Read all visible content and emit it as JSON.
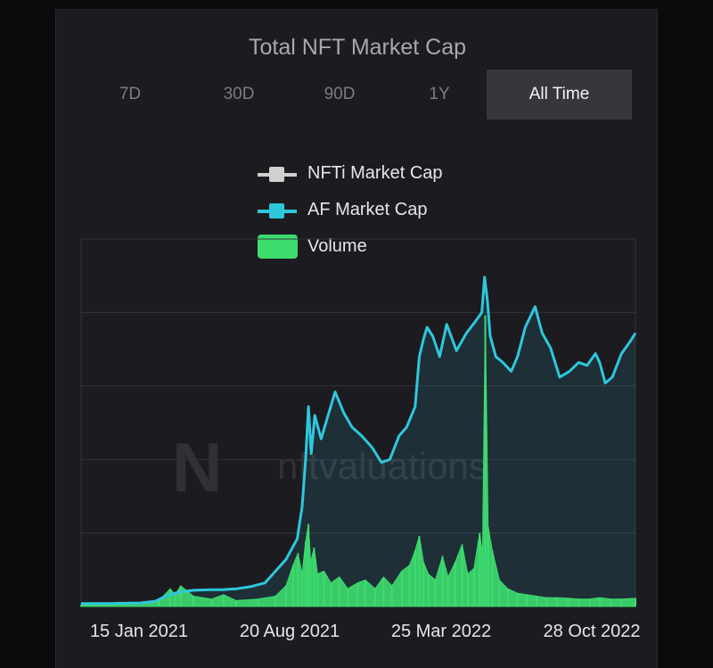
{
  "window": {
    "title": "Total NFT Market Cap"
  },
  "tabs": [
    {
      "label": "7D",
      "active": false
    },
    {
      "label": "30D",
      "active": false
    },
    {
      "label": "90D",
      "active": false
    },
    {
      "label": "1Y",
      "active": false
    },
    {
      "label": "All Time",
      "active": true
    }
  ],
  "legend": {
    "items": [
      {
        "label": "NFTi Market Cap",
        "color": "#d0d0d0",
        "icon": "line-swatch"
      },
      {
        "label": "AF Market Cap",
        "color": "#2fc7dc",
        "icon": "line-swatch"
      },
      {
        "label": "Volume",
        "color": "#3ddc6f",
        "icon": "box-swatch"
      }
    ]
  },
  "watermark": {
    "logo": "N",
    "text": "nftvaluations"
  },
  "colors": {
    "background": "#0b0b0d",
    "panel": "#1c1b20",
    "grid": "#34333a",
    "af_line": "#2fc7dc",
    "af_fill": "#2fc7dc",
    "volume": "#3ddc6f",
    "active_tab": "#37363d"
  },
  "chart_data": {
    "type": "line",
    "title": "Total NFT Market Cap",
    "xlabel": "",
    "ylabel": "",
    "y_tick_labels": false,
    "grid": true,
    "legend_position": "top-center",
    "x_ticks": [
      "15 Jan 2021",
      "20 Aug 2021",
      "25 Mar 2022",
      "28 Oct 2022"
    ],
    "x_range": [
      "2020-10-01",
      "2022-11-30"
    ],
    "series": [
      {
        "name": "AF Market Cap",
        "type": "area-line",
        "color": "#2fc7dc",
        "points": [
          [
            "2020-10-01",
            1.0
          ],
          [
            "2020-11-15",
            1.0
          ],
          [
            "2020-12-25",
            1.2
          ],
          [
            "2021-01-15",
            1.8
          ],
          [
            "2021-02-01",
            3.8
          ],
          [
            "2021-02-20",
            5.0
          ],
          [
            "2021-03-10",
            5.5
          ],
          [
            "2021-04-01",
            5.7
          ],
          [
            "2021-04-20",
            5.7
          ],
          [
            "2021-05-10",
            6.0
          ],
          [
            "2021-06-01",
            6.8
          ],
          [
            "2021-06-20",
            8.0
          ],
          [
            "2021-07-05",
            12.0
          ],
          [
            "2021-07-20",
            16.0
          ],
          [
            "2021-07-28",
            19.5
          ],
          [
            "2021-08-05",
            23.0
          ],
          [
            "2021-08-12",
            34.0
          ],
          [
            "2021-08-17",
            50.0
          ],
          [
            "2021-08-21",
            68.0
          ],
          [
            "2021-08-25",
            52.0
          ],
          [
            "2021-08-30",
            65.0
          ],
          [
            "2021-09-08",
            57.0
          ],
          [
            "2021-09-18",
            65.0
          ],
          [
            "2021-09-28",
            73.0
          ],
          [
            "2021-10-10",
            66.0
          ],
          [
            "2021-10-22",
            61.0
          ],
          [
            "2021-11-05",
            58.0
          ],
          [
            "2021-11-20",
            54.0
          ],
          [
            "2021-12-03",
            49.0
          ],
          [
            "2021-12-15",
            50.0
          ],
          [
            "2021-12-28",
            58.0
          ],
          [
            "2022-01-08",
            61.0
          ],
          [
            "2022-01-20",
            68.0
          ],
          [
            "2022-01-26",
            85.0
          ],
          [
            "2022-02-01",
            91.0
          ],
          [
            "2022-02-06",
            95.0
          ],
          [
            "2022-02-14",
            92.0
          ],
          [
            "2022-02-24",
            85.0
          ],
          [
            "2022-03-06",
            96.0
          ],
          [
            "2022-03-20",
            87.0
          ],
          [
            "2022-04-03",
            93.0
          ],
          [
            "2022-04-16",
            97.0
          ],
          [
            "2022-04-25",
            100.0
          ],
          [
            "2022-04-29",
            112.0
          ],
          [
            "2022-05-03",
            104.0
          ],
          [
            "2022-05-07",
            92.0
          ],
          [
            "2022-05-15",
            85.0
          ],
          [
            "2022-05-25",
            83.0
          ],
          [
            "2022-06-06",
            80.0
          ],
          [
            "2022-06-15",
            85.0
          ],
          [
            "2022-06-26",
            95.0
          ],
          [
            "2022-07-10",
            102.0
          ],
          [
            "2022-07-20",
            93.0
          ],
          [
            "2022-08-01",
            88.0
          ],
          [
            "2022-08-14",
            78.0
          ],
          [
            "2022-08-28",
            80.0
          ],
          [
            "2022-09-10",
            83.0
          ],
          [
            "2022-09-22",
            82.0
          ],
          [
            "2022-10-04",
            86.0
          ],
          [
            "2022-10-10",
            83.0
          ],
          [
            "2022-10-18",
            76.0
          ],
          [
            "2022-10-28",
            78.0
          ],
          [
            "2022-11-10",
            86.0
          ],
          [
            "2022-11-22",
            90.0
          ],
          [
            "2022-11-30",
            93.0
          ]
        ]
      },
      {
        "name": "Volume",
        "type": "bar",
        "color": "#3ddc6f",
        "points": [
          [
            "2020-10-01",
            0.5
          ],
          [
            "2020-12-01",
            0.8
          ],
          [
            "2021-01-20",
            2.0
          ],
          [
            "2021-02-05",
            6.0
          ],
          [
            "2021-02-12",
            4.0
          ],
          [
            "2021-02-20",
            7.0
          ],
          [
            "2021-03-10",
            3.5
          ],
          [
            "2021-04-05",
            2.5
          ],
          [
            "2021-04-22",
            4.0
          ],
          [
            "2021-05-10",
            2.0
          ],
          [
            "2021-06-10",
            2.5
          ],
          [
            "2021-07-05",
            3.5
          ],
          [
            "2021-07-20",
            7.0
          ],
          [
            "2021-07-30",
            14.0
          ],
          [
            "2021-08-06",
            18.0
          ],
          [
            "2021-08-12",
            11.0
          ],
          [
            "2021-08-17",
            22.0
          ],
          [
            "2021-08-21",
            28.0
          ],
          [
            "2021-08-24",
            15.0
          ],
          [
            "2021-08-29",
            20.0
          ],
          [
            "2021-09-03",
            11.0
          ],
          [
            "2021-09-12",
            12.0
          ],
          [
            "2021-09-22",
            8.0
          ],
          [
            "2021-10-04",
            10.0
          ],
          [
            "2021-10-16",
            6.0
          ],
          [
            "2021-10-30",
            8.0
          ],
          [
            "2021-11-10",
            9.0
          ],
          [
            "2021-11-24",
            6.0
          ],
          [
            "2021-12-06",
            10.0
          ],
          [
            "2021-12-18",
            7.0
          ],
          [
            "2022-01-01",
            12.0
          ],
          [
            "2022-01-12",
            14.0
          ],
          [
            "2022-01-20",
            19.0
          ],
          [
            "2022-01-26",
            24.0
          ],
          [
            "2022-02-01",
            15.0
          ],
          [
            "2022-02-08",
            11.0
          ],
          [
            "2022-02-18",
            9.0
          ],
          [
            "2022-02-28",
            17.0
          ],
          [
            "2022-03-08",
            10.0
          ],
          [
            "2022-03-18",
            15.0
          ],
          [
            "2022-03-28",
            21.0
          ],
          [
            "2022-04-05",
            11.0
          ],
          [
            "2022-04-14",
            13.0
          ],
          [
            "2022-04-22",
            25.0
          ],
          [
            "2022-04-26",
            18.0
          ],
          [
            "2022-04-30",
            99.0
          ],
          [
            "2022-05-04",
            27.0
          ],
          [
            "2022-05-10",
            19.0
          ],
          [
            "2022-05-20",
            9.0
          ],
          [
            "2022-06-01",
            6.0
          ],
          [
            "2022-06-15",
            4.5
          ],
          [
            "2022-06-28",
            4.0
          ],
          [
            "2022-07-12",
            3.5
          ],
          [
            "2022-07-26",
            3.0
          ],
          [
            "2022-08-10",
            3.0
          ],
          [
            "2022-08-26",
            2.8
          ],
          [
            "2022-09-10",
            2.5
          ],
          [
            "2022-09-26",
            2.5
          ],
          [
            "2022-10-10",
            3.0
          ],
          [
            "2022-10-26",
            2.5
          ],
          [
            "2022-11-10",
            2.5
          ],
          [
            "2022-11-30",
            2.8
          ]
        ]
      }
    ]
  }
}
